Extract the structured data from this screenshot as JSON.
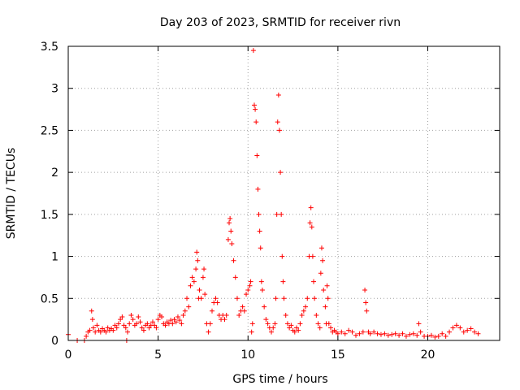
{
  "chart_data": {
    "type": "scatter",
    "title": "Day 203 of 2023, SRMTID for receiver rivn",
    "xlabel": "GPS time / hours",
    "ylabel": "SRMTID / TECUs",
    "xlim": [
      0,
      24
    ],
    "ylim": [
      0,
      3.5
    ],
    "xticks": [
      0,
      5,
      10,
      15,
      20
    ],
    "xtick_labels": [
      "0",
      "5",
      "10",
      "15",
      "20"
    ],
    "yticks": [
      0,
      0.5,
      1,
      1.5,
      2,
      2.5,
      3,
      3.5
    ],
    "ytick_labels": [
      "0",
      "0.5",
      "1",
      "1.5",
      "2",
      "2.5",
      "3",
      "3.5"
    ],
    "grid": true,
    "marker": "plus",
    "color": "#ff0000",
    "series": [
      {
        "name": "SRMTID",
        "points": [
          [
            0.0,
            0.07
          ],
          [
            0.5,
            0.0
          ],
          [
            0.9,
            0.0
          ],
          [
            1.0,
            0.05
          ],
          [
            1.1,
            0.1
          ],
          [
            1.2,
            0.12
          ],
          [
            1.3,
            0.35
          ],
          [
            1.35,
            0.25
          ],
          [
            1.4,
            0.15
          ],
          [
            1.5,
            0.1
          ],
          [
            1.6,
            0.18
          ],
          [
            1.7,
            0.12
          ],
          [
            1.8,
            0.1
          ],
          [
            1.9,
            0.14
          ],
          [
            2.0,
            0.12
          ],
          [
            2.1,
            0.1
          ],
          [
            2.2,
            0.15
          ],
          [
            2.3,
            0.12
          ],
          [
            2.4,
            0.14
          ],
          [
            2.5,
            0.12
          ],
          [
            2.6,
            0.18
          ],
          [
            2.7,
            0.15
          ],
          [
            2.8,
            0.2
          ],
          [
            2.9,
            0.25
          ],
          [
            3.0,
            0.28
          ],
          [
            3.1,
            0.18
          ],
          [
            3.2,
            0.15
          ],
          [
            3.25,
            0.0
          ],
          [
            3.3,
            0.1
          ],
          [
            3.4,
            0.2
          ],
          [
            3.5,
            0.3
          ],
          [
            3.6,
            0.25
          ],
          [
            3.7,
            0.18
          ],
          [
            3.8,
            0.2
          ],
          [
            3.9,
            0.28
          ],
          [
            4.0,
            0.22
          ],
          [
            4.1,
            0.15
          ],
          [
            4.2,
            0.12
          ],
          [
            4.3,
            0.18
          ],
          [
            4.4,
            0.2
          ],
          [
            4.5,
            0.15
          ],
          [
            4.6,
            0.18
          ],
          [
            4.7,
            0.22
          ],
          [
            4.8,
            0.18
          ],
          [
            4.9,
            0.15
          ],
          [
            5.0,
            0.25
          ],
          [
            5.1,
            0.3
          ],
          [
            5.2,
            0.28
          ],
          [
            5.3,
            0.2
          ],
          [
            5.4,
            0.18
          ],
          [
            5.5,
            0.22
          ],
          [
            5.6,
            0.2
          ],
          [
            5.7,
            0.24
          ],
          [
            5.8,
            0.2
          ],
          [
            5.9,
            0.25
          ],
          [
            6.0,
            0.22
          ],
          [
            6.1,
            0.28
          ],
          [
            6.2,
            0.24
          ],
          [
            6.3,
            0.2
          ],
          [
            6.4,
            0.3
          ],
          [
            6.5,
            0.35
          ],
          [
            6.6,
            0.5
          ],
          [
            6.7,
            0.4
          ],
          [
            6.8,
            0.65
          ],
          [
            6.9,
            0.75
          ],
          [
            7.0,
            0.7
          ],
          [
            7.1,
            0.85
          ],
          [
            7.15,
            1.05
          ],
          [
            7.2,
            0.95
          ],
          [
            7.25,
            0.5
          ],
          [
            7.3,
            0.6
          ],
          [
            7.4,
            0.5
          ],
          [
            7.5,
            0.75
          ],
          [
            7.55,
            0.85
          ],
          [
            7.6,
            0.55
          ],
          [
            7.7,
            0.2
          ],
          [
            7.8,
            0.1
          ],
          [
            7.9,
            0.2
          ],
          [
            8.0,
            0.35
          ],
          [
            8.1,
            0.45
          ],
          [
            8.2,
            0.5
          ],
          [
            8.3,
            0.45
          ],
          [
            8.4,
            0.3
          ],
          [
            8.5,
            0.25
          ],
          [
            8.6,
            0.3
          ],
          [
            8.7,
            0.25
          ],
          [
            8.8,
            0.3
          ],
          [
            8.9,
            1.2
          ],
          [
            8.95,
            1.4
          ],
          [
            9.0,
            1.45
          ],
          [
            9.05,
            1.3
          ],
          [
            9.1,
            1.15
          ],
          [
            9.2,
            0.95
          ],
          [
            9.3,
            0.75
          ],
          [
            9.4,
            0.5
          ],
          [
            9.5,
            0.3
          ],
          [
            9.6,
            0.35
          ],
          [
            9.7,
            0.4
          ],
          [
            9.8,
            0.35
          ],
          [
            9.9,
            0.55
          ],
          [
            10.0,
            0.6
          ],
          [
            10.1,
            0.65
          ],
          [
            10.15,
            0.7
          ],
          [
            10.2,
            0.1
          ],
          [
            10.25,
            0.2
          ],
          [
            10.3,
            3.45
          ],
          [
            10.35,
            2.8
          ],
          [
            10.4,
            2.75
          ],
          [
            10.45,
            2.6
          ],
          [
            10.5,
            2.2
          ],
          [
            10.55,
            1.8
          ],
          [
            10.6,
            1.5
          ],
          [
            10.65,
            1.3
          ],
          [
            10.7,
            1.1
          ],
          [
            10.75,
            0.7
          ],
          [
            10.8,
            0.6
          ],
          [
            10.9,
            0.4
          ],
          [
            11.0,
            0.25
          ],
          [
            11.1,
            0.2
          ],
          [
            11.2,
            0.15
          ],
          [
            11.3,
            0.1
          ],
          [
            11.4,
            0.15
          ],
          [
            11.5,
            0.2
          ],
          [
            11.55,
            0.5
          ],
          [
            11.6,
            1.5
          ],
          [
            11.65,
            2.6
          ],
          [
            11.7,
            2.92
          ],
          [
            11.75,
            2.5
          ],
          [
            11.8,
            2.0
          ],
          [
            11.85,
            1.5
          ],
          [
            11.9,
            1.0
          ],
          [
            11.95,
            0.7
          ],
          [
            12.0,
            0.5
          ],
          [
            12.1,
            0.3
          ],
          [
            12.2,
            0.2
          ],
          [
            12.3,
            0.15
          ],
          [
            12.4,
            0.18
          ],
          [
            12.5,
            0.12
          ],
          [
            12.6,
            0.1
          ],
          [
            12.7,
            0.15
          ],
          [
            12.8,
            0.12
          ],
          [
            12.9,
            0.2
          ],
          [
            13.0,
            0.3
          ],
          [
            13.1,
            0.35
          ],
          [
            13.2,
            0.4
          ],
          [
            13.3,
            0.5
          ],
          [
            13.4,
            1.0
          ],
          [
            13.45,
            1.4
          ],
          [
            13.5,
            1.58
          ],
          [
            13.55,
            1.35
          ],
          [
            13.6,
            1.0
          ],
          [
            13.65,
            0.7
          ],
          [
            13.7,
            0.5
          ],
          [
            13.8,
            0.3
          ],
          [
            13.9,
            0.2
          ],
          [
            14.0,
            0.15
          ],
          [
            14.05,
            0.8
          ],
          [
            14.1,
            1.1
          ],
          [
            14.15,
            0.95
          ],
          [
            14.2,
            0.6
          ],
          [
            14.3,
            0.4
          ],
          [
            14.35,
            0.2
          ],
          [
            14.4,
            0.65
          ],
          [
            14.45,
            0.5
          ],
          [
            14.5,
            0.2
          ],
          [
            14.6,
            0.15
          ],
          [
            14.7,
            0.1
          ],
          [
            14.8,
            0.12
          ],
          [
            14.9,
            0.1
          ],
          [
            15.0,
            0.08
          ],
          [
            15.2,
            0.1
          ],
          [
            15.4,
            0.08
          ],
          [
            15.6,
            0.12
          ],
          [
            15.8,
            0.1
          ],
          [
            16.0,
            0.06
          ],
          [
            16.2,
            0.08
          ],
          [
            16.4,
            0.1
          ],
          [
            16.5,
            0.6
          ],
          [
            16.55,
            0.45
          ],
          [
            16.6,
            0.35
          ],
          [
            16.7,
            0.1
          ],
          [
            16.8,
            0.08
          ],
          [
            17.0,
            0.1
          ],
          [
            17.2,
            0.08
          ],
          [
            17.4,
            0.07
          ],
          [
            17.6,
            0.08
          ],
          [
            17.8,
            0.06
          ],
          [
            18.0,
            0.07
          ],
          [
            18.2,
            0.08
          ],
          [
            18.4,
            0.06
          ],
          [
            18.6,
            0.08
          ],
          [
            18.8,
            0.05
          ],
          [
            19.0,
            0.07
          ],
          [
            19.2,
            0.08
          ],
          [
            19.4,
            0.06
          ],
          [
            19.5,
            0.2
          ],
          [
            19.6,
            0.1
          ],
          [
            19.8,
            0.05
          ],
          [
            20.0,
            0.05
          ],
          [
            20.2,
            0.06
          ],
          [
            20.4,
            0.04
          ],
          [
            20.6,
            0.05
          ],
          [
            20.8,
            0.08
          ],
          [
            21.0,
            0.05
          ],
          [
            21.2,
            0.1
          ],
          [
            21.4,
            0.15
          ],
          [
            21.6,
            0.18
          ],
          [
            21.8,
            0.15
          ],
          [
            22.0,
            0.1
          ],
          [
            22.2,
            0.12
          ],
          [
            22.4,
            0.14
          ],
          [
            22.6,
            0.1
          ],
          [
            22.8,
            0.08
          ]
        ]
      }
    ]
  }
}
